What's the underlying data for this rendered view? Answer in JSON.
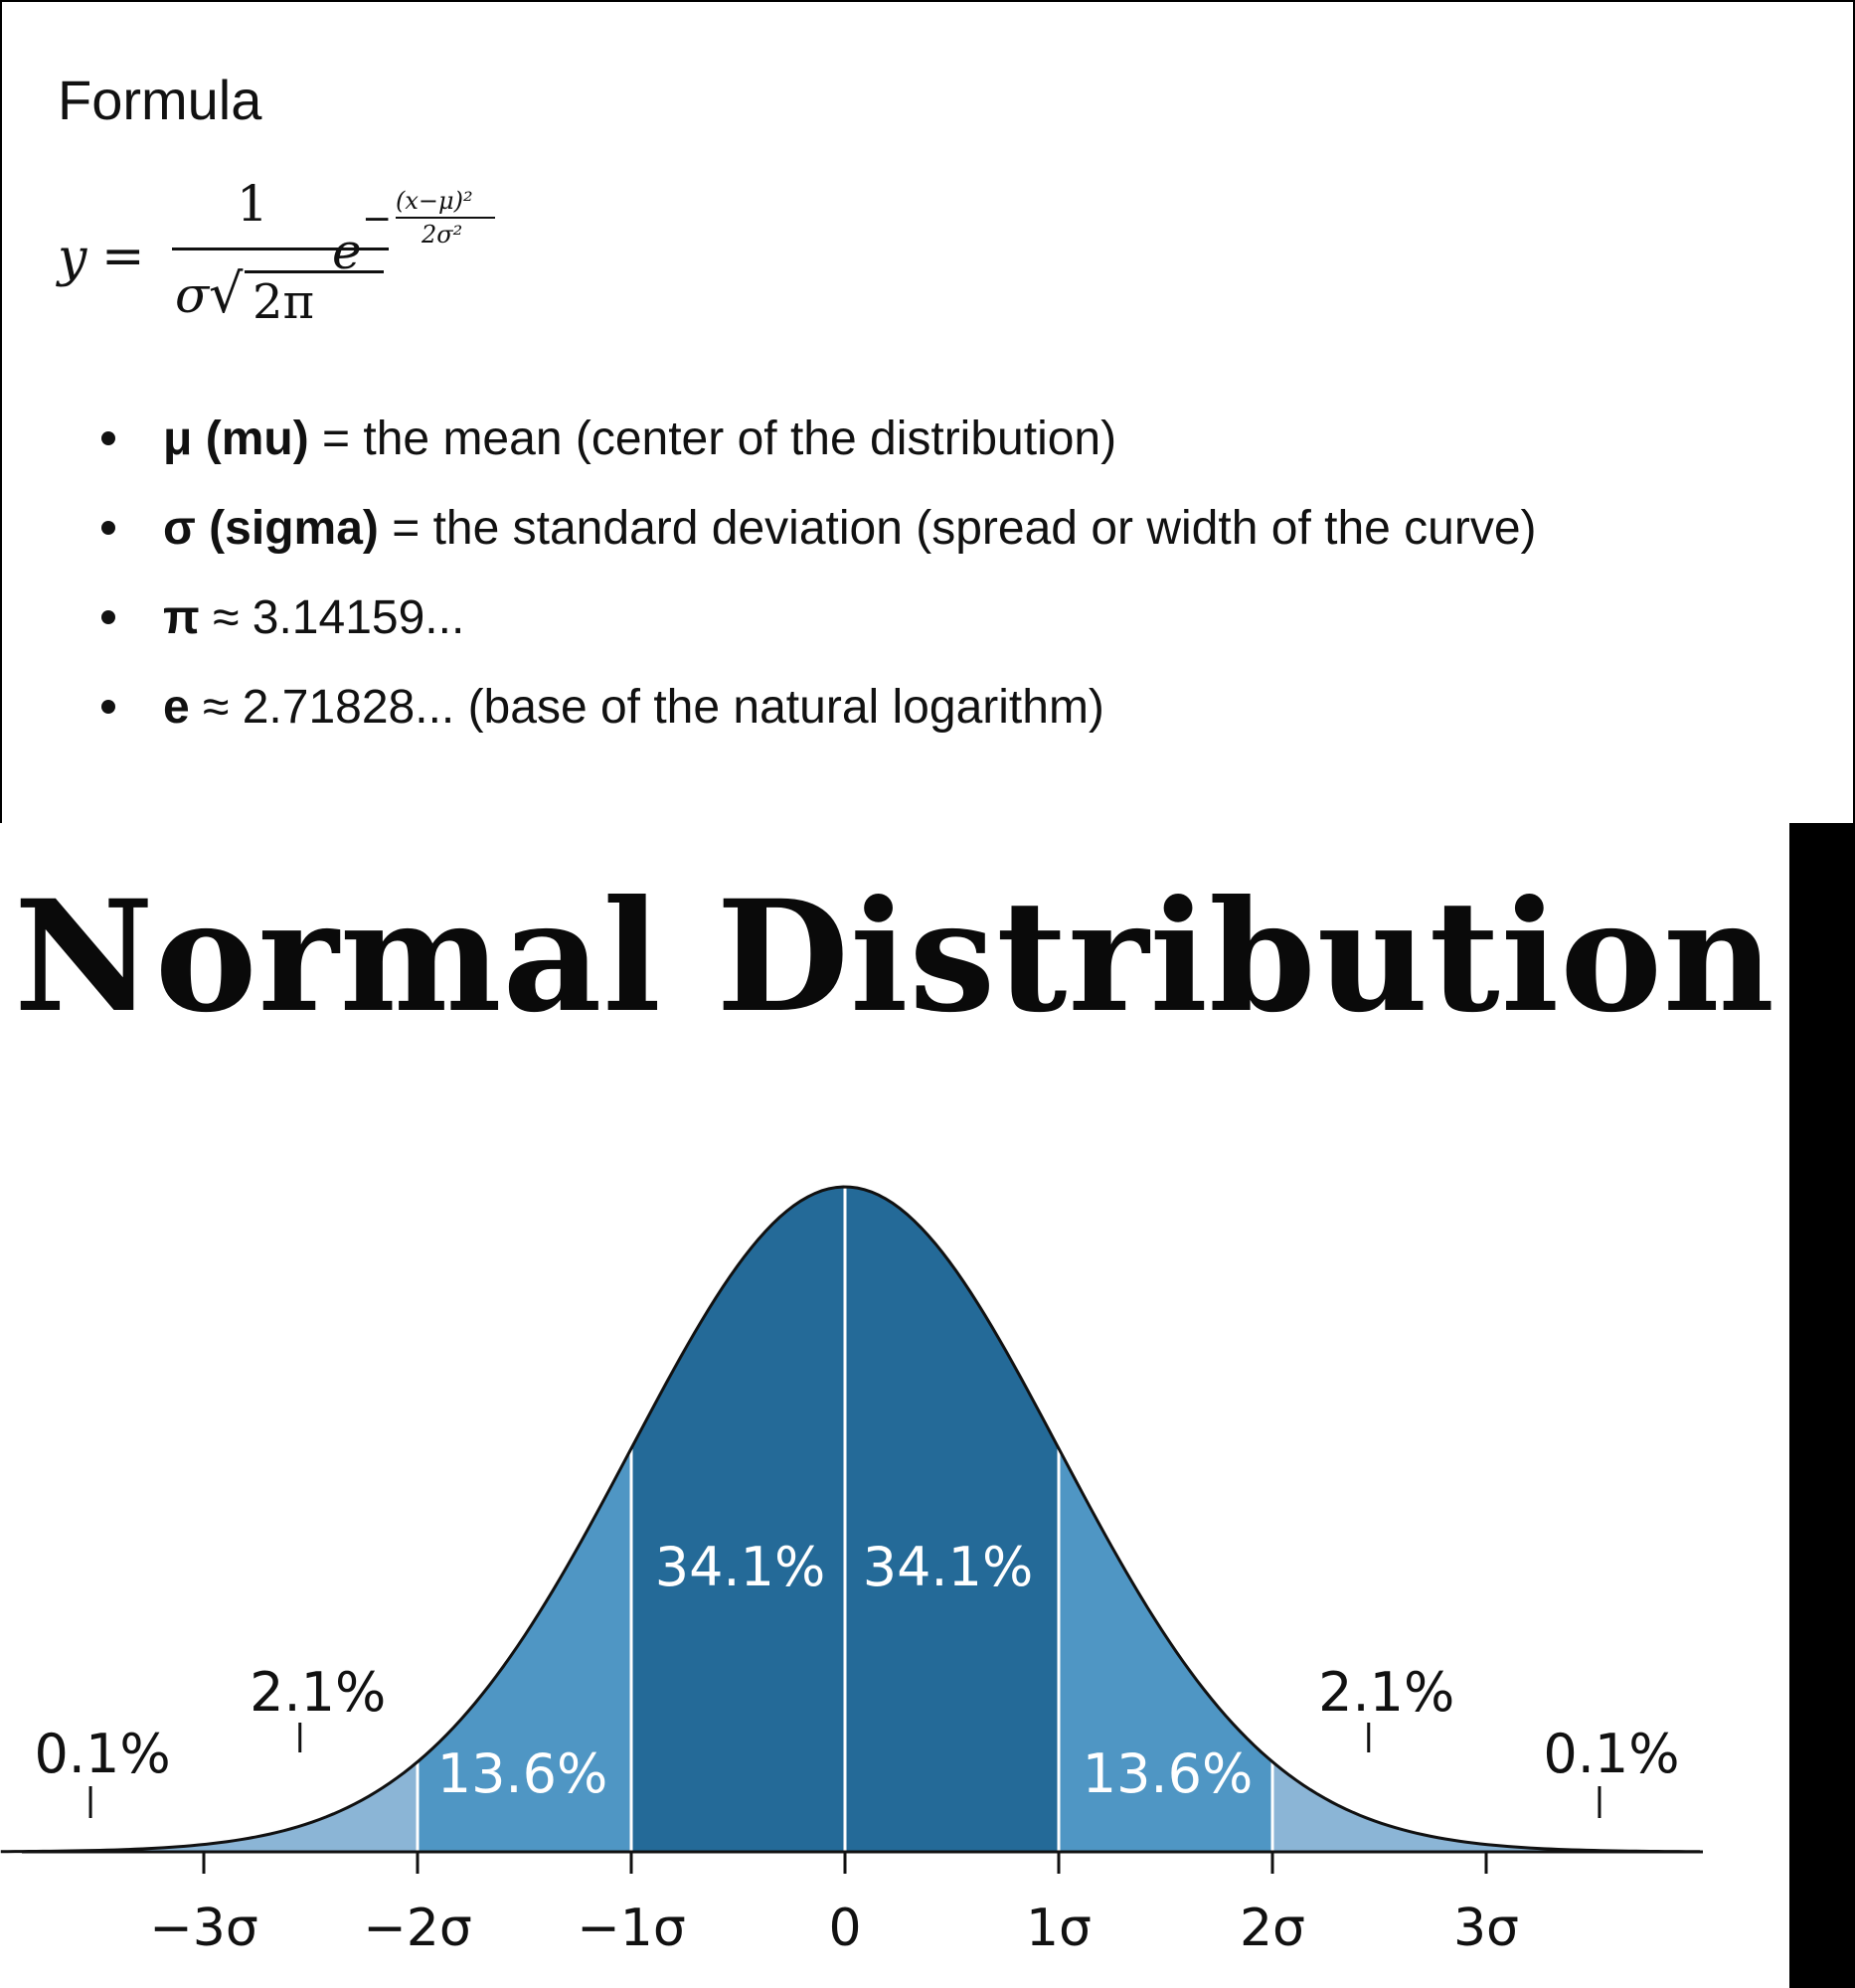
{
  "formula": {
    "heading": "Formula",
    "lhs": "y",
    "equals": "=",
    "numerator": "1",
    "den_sigma": "σ",
    "den_radical": "√",
    "den_radicand": "2π",
    "base": "e",
    "exp_minus": "−",
    "exp_numerator": "(x−μ)²",
    "exp_denominator": "2σ²"
  },
  "definitions": [
    {
      "term": "μ (mu)",
      "desc": " = the mean (center of the distribution)"
    },
    {
      "term": "σ (sigma)",
      "desc": " = the standard deviation (spread or width of the curve)"
    },
    {
      "term": "π",
      "desc": " ≈ 3.14159..."
    },
    {
      "term": "e",
      "desc": " ≈ 2.71828... (base of the natural logarithm)"
    }
  ],
  "chart_data": {
    "type": "area",
    "title": "Normal Distribution",
    "xlabel": "",
    "ylabel": "",
    "xlim": [
      -3.95,
      4.0
    ],
    "x_ticks": [
      -3,
      -2,
      -1,
      0,
      1,
      2,
      3
    ],
    "x_tick_labels": [
      "−3σ",
      "−2σ",
      "−1σ",
      "0",
      "1σ",
      "2σ",
      "3σ"
    ],
    "curve": "standard normal density, mean 0, standard deviation 1",
    "grid": false,
    "legend": "none",
    "regions": [
      {
        "from": -3,
        "to": -2,
        "percent": "2.1%",
        "value": 2.1,
        "color": "#8bb5d6"
      },
      {
        "from": -2,
        "to": -1,
        "percent": "13.6%",
        "value": 13.6,
        "color": "#4f96c4"
      },
      {
        "from": -1,
        "to": 0,
        "percent": "34.1%",
        "value": 34.1,
        "color": "#246a98"
      },
      {
        "from": 0,
        "to": 1,
        "percent": "34.1%",
        "value": 34.1,
        "color": "#246a98"
      },
      {
        "from": 1,
        "to": 2,
        "percent": "13.6%",
        "value": 13.6,
        "color": "#4f96c4"
      },
      {
        "from": 2,
        "to": 3,
        "percent": "2.1%",
        "value": 2.1,
        "color": "#8bb5d6"
      }
    ],
    "tails": [
      {
        "side": "left",
        "percent": "0.1%",
        "value": 0.1
      },
      {
        "side": "right",
        "percent": "0.1%",
        "value": 0.1
      }
    ],
    "colors": {
      "outline": "#111111",
      "axis": "#111111",
      "divider": "#ffffff",
      "inner_label": "#ffffff",
      "outer_label": "#111111",
      "tail_fill": "#8bb5d6"
    }
  }
}
